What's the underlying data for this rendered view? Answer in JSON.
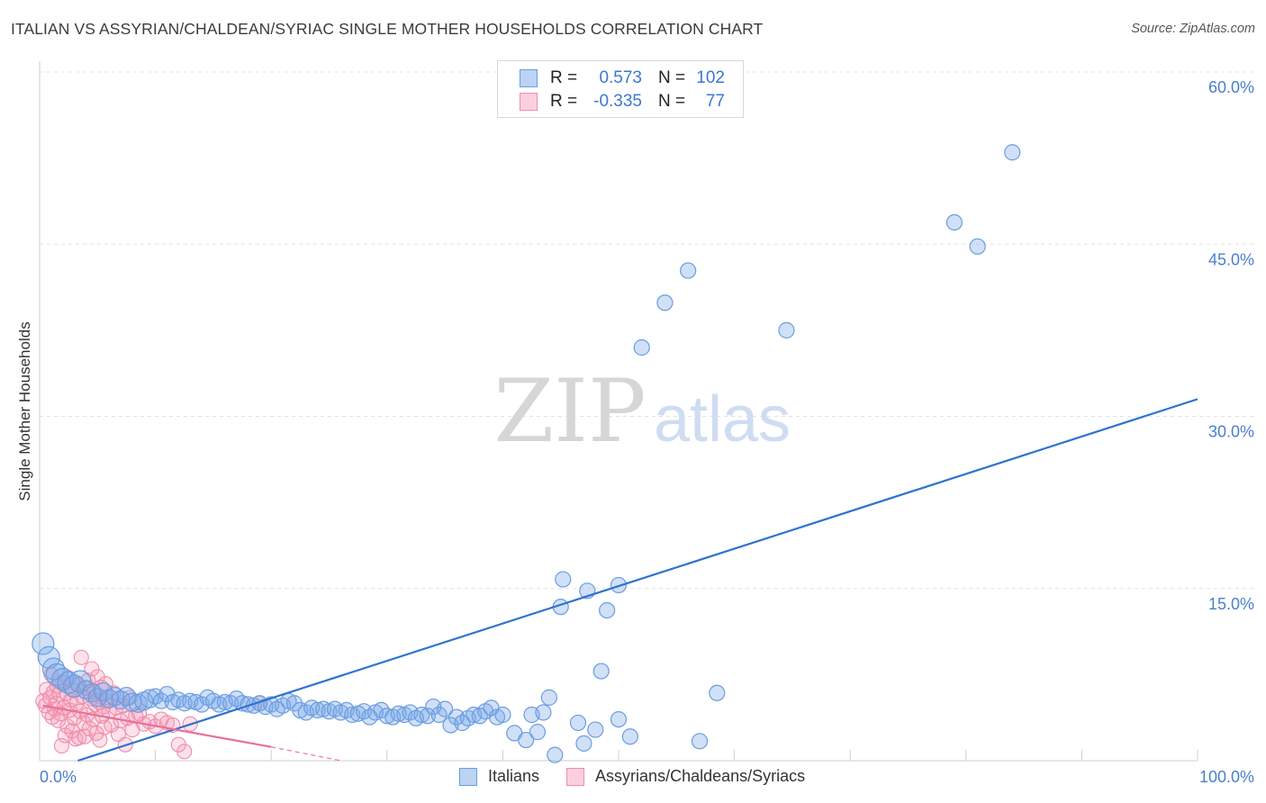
{
  "title": "ITALIAN VS ASSYRIAN/CHALDEAN/SYRIAC SINGLE MOTHER HOUSEHOLDS CORRELATION CHART",
  "source": "Source: ZipAtlas.com",
  "watermark": {
    "zip": "ZIP",
    "atlas": "atlas"
  },
  "legend": {
    "rows": [
      {
        "r_label": "R =",
        "r_value": "0.573",
        "n_label": "N =",
        "n_value": "102"
      },
      {
        "r_label": "R =",
        "r_value": "-0.335",
        "n_label": "N =",
        "n_value": "77"
      }
    ]
  },
  "colors": {
    "italians": "#6a9de0",
    "assyrians": "#f08cab",
    "italians_line": "#2f72d0",
    "assyrians_line": "#e8709a"
  },
  "chart_data": {
    "type": "scatter",
    "title": "ITALIAN VS ASSYRIAN/CHALDEAN/SYRIAC SINGLE MOTHER HOUSEHOLDS CORRELATION CHART",
    "xlabel": "",
    "ylabel": "Single Mother Households",
    "xlim": [
      0,
      100
    ],
    "ylim": [
      0,
      60
    ],
    "x_tick_labels": [
      "0.0%",
      "100.0%"
    ],
    "y_ticks": [
      15,
      30,
      45,
      60
    ],
    "y_tick_labels": [
      "15.0%",
      "30.0%",
      "45.0%",
      "60.0%"
    ],
    "grid": true,
    "legend_placement": "top-center",
    "series": [
      {
        "name": "Italians",
        "trend": {
          "x": [
            3.3,
            100
          ],
          "y": [
            0,
            31.5
          ]
        },
        "points": [
          [
            0.3,
            10.2
          ],
          [
            0.8,
            9.0
          ],
          [
            1.2,
            8.0
          ],
          [
            1.5,
            7.5
          ],
          [
            2,
            7.1
          ],
          [
            2.5,
            6.8
          ],
          [
            3,
            6.5
          ],
          [
            3.5,
            6.9
          ],
          [
            4,
            6.2
          ],
          [
            4.5,
            5.9
          ],
          [
            5,
            5.5
          ],
          [
            5.5,
            6.0
          ],
          [
            6,
            5.4
          ],
          [
            6.5,
            5.6
          ],
          [
            7,
            5.3
          ],
          [
            7.5,
            5.6
          ],
          [
            8,
            5.1
          ],
          [
            8.5,
            5.0
          ],
          [
            9,
            5.2
          ],
          [
            9.5,
            5.4
          ],
          [
            10,
            5.6
          ],
          [
            10.5,
            5.2
          ],
          [
            11,
            5.8
          ],
          [
            11.5,
            5.1
          ],
          [
            12,
            5.3
          ],
          [
            12.5,
            5.0
          ],
          [
            13,
            5.2
          ],
          [
            13.5,
            5.1
          ],
          [
            14,
            4.9
          ],
          [
            14.5,
            5.5
          ],
          [
            15,
            5.2
          ],
          [
            15.5,
            4.9
          ],
          [
            16,
            5.1
          ],
          [
            16.5,
            5.0
          ],
          [
            17,
            5.4
          ],
          [
            17.5,
            5.0
          ],
          [
            18,
            4.9
          ],
          [
            18.5,
            4.8
          ],
          [
            19,
            5.0
          ],
          [
            19.5,
            4.7
          ],
          [
            20,
            4.9
          ],
          [
            20.5,
            4.5
          ],
          [
            21,
            4.8
          ],
          [
            21.5,
            5.2
          ],
          [
            22,
            5.0
          ],
          [
            22.5,
            4.4
          ],
          [
            23,
            4.2
          ],
          [
            23.5,
            4.6
          ],
          [
            24,
            4.4
          ],
          [
            24.5,
            4.5
          ],
          [
            25,
            4.3
          ],
          [
            25.5,
            4.5
          ],
          [
            26,
            4.2
          ],
          [
            26.5,
            4.4
          ],
          [
            27,
            4.0
          ],
          [
            27.5,
            4.1
          ],
          [
            28,
            4.3
          ],
          [
            28.5,
            3.8
          ],
          [
            29,
            4.2
          ],
          [
            29.5,
            4.4
          ],
          [
            30,
            3.9
          ],
          [
            30.5,
            3.8
          ],
          [
            31,
            4.1
          ],
          [
            31.5,
            4.0
          ],
          [
            32,
            4.2
          ],
          [
            32.5,
            3.7
          ],
          [
            33,
            4.0
          ],
          [
            33.5,
            3.9
          ],
          [
            34,
            4.7
          ],
          [
            34.5,
            4.0
          ],
          [
            35,
            4.5
          ],
          [
            35.5,
            3.1
          ],
          [
            36,
            3.8
          ],
          [
            36.5,
            3.3
          ],
          [
            37,
            3.7
          ],
          [
            37.5,
            4.0
          ],
          [
            38,
            3.9
          ],
          [
            38.5,
            4.3
          ],
          [
            39,
            4.6
          ],
          [
            39.5,
            3.8
          ],
          [
            40,
            4.0
          ],
          [
            41,
            2.4
          ],
          [
            42,
            1.8
          ],
          [
            42.5,
            4.0
          ],
          [
            43,
            2.5
          ],
          [
            43.5,
            4.2
          ],
          [
            44,
            5.5
          ],
          [
            44.5,
            0.5
          ],
          [
            45,
            13.4
          ],
          [
            45.2,
            15.8
          ],
          [
            46.5,
            3.3
          ],
          [
            47,
            1.5
          ],
          [
            47.3,
            14.8
          ],
          [
            48,
            2.7
          ],
          [
            48.5,
            7.8
          ],
          [
            49,
            13.1
          ],
          [
            50,
            15.3
          ],
          [
            50,
            3.6
          ],
          [
            51,
            2.1
          ],
          [
            52,
            36.0
          ],
          [
            54,
            39.9
          ],
          [
            56,
            42.7
          ],
          [
            57,
            1.7
          ],
          [
            58.5,
            5.9
          ],
          [
            64.5,
            37.5
          ],
          [
            79,
            46.9
          ],
          [
            81,
            44.8
          ],
          [
            84,
            53.0
          ]
        ]
      },
      {
        "name": "Assyrians/Chaldeans/Syriacs",
        "trend": {
          "x": [
            0.3,
            20
          ],
          "y": [
            4.8,
            1.2
          ]
        },
        "trend_dashed": {
          "x": [
            20,
            26
          ],
          "y": [
            1.2,
            0
          ]
        },
        "points": [
          [
            0.3,
            5.2
          ],
          [
            0.5,
            4.8
          ],
          [
            0.6,
            6.2
          ],
          [
            0.8,
            4.2
          ],
          [
            0.9,
            5.5
          ],
          [
            1.0,
            7.5
          ],
          [
            1.1,
            3.8
          ],
          [
            1.2,
            6.0
          ],
          [
            1.3,
            4.5
          ],
          [
            1.4,
            5.0
          ],
          [
            1.5,
            6.5
          ],
          [
            1.6,
            3.5
          ],
          [
            1.7,
            5.8
          ],
          [
            1.8,
            4.1
          ],
          [
            1.9,
            1.3
          ],
          [
            2.0,
            6.8
          ],
          [
            2.1,
            4.6
          ],
          [
            2.2,
            2.2
          ],
          [
            2.3,
            5.9
          ],
          [
            2.4,
            3.0
          ],
          [
            2.5,
            7.2
          ],
          [
            2.6,
            4.4
          ],
          [
            2.7,
            5.3
          ],
          [
            2.8,
            2.6
          ],
          [
            2.9,
            6.1
          ],
          [
            3.0,
            3.7
          ],
          [
            3.1,
            1.9
          ],
          [
            3.2,
            5.0
          ],
          [
            3.3,
            6.6
          ],
          [
            3.4,
            2.0
          ],
          [
            3.5,
            4.3
          ],
          [
            3.6,
            9.0
          ],
          [
            3.7,
            5.6
          ],
          [
            3.8,
            3.3
          ],
          [
            3.9,
            2.1
          ],
          [
            4.0,
            6.3
          ],
          [
            4.1,
            4.0
          ],
          [
            4.2,
            7.0
          ],
          [
            4.3,
            2.8
          ],
          [
            4.4,
            5.4
          ],
          [
            4.5,
            8.0
          ],
          [
            4.6,
            3.6
          ],
          [
            4.7,
            6.0
          ],
          [
            4.8,
            4.9
          ],
          [
            4.9,
            2.4
          ],
          [
            5.0,
            7.3
          ],
          [
            5.1,
            5.1
          ],
          [
            5.2,
            1.8
          ],
          [
            5.3,
            6.4
          ],
          [
            5.4,
            3.9
          ],
          [
            5.5,
            4.7
          ],
          [
            5.6,
            2.9
          ],
          [
            5.7,
            6.7
          ],
          [
            5.8,
            5.2
          ],
          [
            6.0,
            4.3
          ],
          [
            6.2,
            3.1
          ],
          [
            6.4,
            5.9
          ],
          [
            6.6,
            4.6
          ],
          [
            6.8,
            2.3
          ],
          [
            7.0,
            3.5
          ],
          [
            7.2,
            4.8
          ],
          [
            7.4,
            1.4
          ],
          [
            7.6,
            3.7
          ],
          [
            7.8,
            5.5
          ],
          [
            8.0,
            2.7
          ],
          [
            8.3,
            3.9
          ],
          [
            8.6,
            4.1
          ],
          [
            9.0,
            3.2
          ],
          [
            9.5,
            3.4
          ],
          [
            10,
            3.0
          ],
          [
            10.5,
            3.6
          ],
          [
            11,
            3.3
          ],
          [
            11.5,
            3.1
          ],
          [
            12,
            1.4
          ],
          [
            12.5,
            0.8
          ],
          [
            13,
            3.2
          ],
          [
            19,
            5.0
          ]
        ]
      }
    ]
  }
}
